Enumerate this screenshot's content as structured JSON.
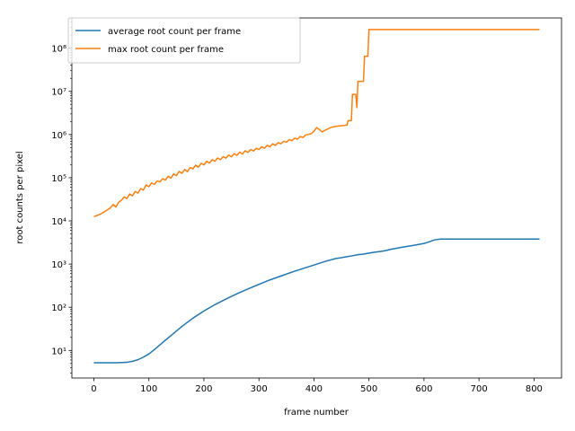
{
  "chart_data": {
    "type": "line",
    "title": "",
    "xlabel": "frame number",
    "ylabel": "root counts per pixel",
    "xlim": [
      -40,
      850
    ],
    "ylim": [
      2.3,
      500000000
    ],
    "yscale": "log",
    "grid": false,
    "legend_position": "top-left",
    "x_ticks": [
      0,
      100,
      200,
      300,
      400,
      500,
      600,
      700,
      800
    ],
    "y_ticks": [
      {
        "value": 10,
        "label": "10¹"
      },
      {
        "value": 100,
        "label": "10²"
      },
      {
        "value": 1000,
        "label": "10³"
      },
      {
        "value": 10000,
        "label": "10⁴"
      },
      {
        "value": 100000,
        "label": "10⁵"
      },
      {
        "value": 1000000,
        "label": "10⁶"
      },
      {
        "value": 10000000,
        "label": "10⁷"
      },
      {
        "value": 100000000,
        "label": "10⁸"
      }
    ],
    "series": [
      {
        "name": "average root count per frame",
        "color": "#1f77b4",
        "x": [
          0,
          20,
          40,
          60,
          70,
          80,
          90,
          100,
          110,
          120,
          140,
          160,
          180,
          200,
          220,
          240,
          260,
          280,
          300,
          320,
          340,
          360,
          380,
          400,
          420,
          440,
          460,
          470,
          480,
          490,
          500,
          510,
          520,
          530,
          540,
          560,
          580,
          600,
          610,
          620,
          630,
          650,
          700,
          750,
          810
        ],
        "y": [
          5.2,
          5.2,
          5.2,
          5.3,
          5.6,
          6.1,
          7,
          8.3,
          10.5,
          13.5,
          22,
          36,
          56,
          82,
          115,
          155,
          205,
          265,
          340,
          430,
          530,
          650,
          790,
          950,
          1150,
          1350,
          1480,
          1560,
          1650,
          1700,
          1800,
          1880,
          1950,
          2050,
          2200,
          2450,
          2700,
          3000,
          3300,
          3650,
          3800,
          3800,
          3800,
          3800,
          3800
        ]
      },
      {
        "name": "max root count per frame",
        "color": "#ff7f0e",
        "x": [
          0,
          10,
          20,
          30,
          35,
          40,
          45,
          50,
          55,
          60,
          65,
          70,
          75,
          80,
          85,
          90,
          95,
          100,
          105,
          110,
          115,
          120,
          125,
          130,
          135,
          140,
          145,
          150,
          155,
          160,
          165,
          170,
          175,
          180,
          185,
          190,
          195,
          200,
          205,
          210,
          215,
          220,
          225,
          230,
          235,
          240,
          245,
          250,
          255,
          260,
          265,
          270,
          275,
          280,
          285,
          290,
          295,
          300,
          305,
          310,
          315,
          320,
          325,
          330,
          335,
          340,
          345,
          350,
          355,
          360,
          365,
          370,
          375,
          380,
          385,
          390,
          395,
          400,
          405,
          410,
          415,
          420,
          430,
          440,
          450,
          460,
          462,
          468,
          470,
          476,
          478,
          480,
          482,
          490,
          492,
          498,
          500,
          502,
          550,
          600,
          650,
          700,
          750,
          810
        ],
        "y": [
          12500,
          14000,
          16500,
          20000,
          24000,
          21000,
          27000,
          30000,
          36000,
          33000,
          42000,
          38000,
          48000,
          44000,
          56000,
          52000,
          68000,
          62000,
          76000,
          70000,
          84000,
          80000,
          95000,
          88000,
          108000,
          98000,
          122000,
          112000,
          140000,
          126000,
          155000,
          138000,
          172000,
          160000,
          195000,
          175000,
          215000,
          198000,
          240000,
          218000,
          262000,
          240000,
          285000,
          262000,
          308000,
          284000,
          335000,
          305000,
          360000,
          330000,
          390000,
          355000,
          420000,
          385000,
          450000,
          415000,
          480000,
          450000,
          520000,
          480000,
          560000,
          520000,
          610000,
          560000,
          650000,
          610000,
          700000,
          660000,
          760000,
          720000,
          820000,
          780000,
          900000,
          850000,
          980000,
          1000000,
          1050000,
          1200000,
          1450000,
          1300000,
          1150000,
          1250000,
          1450000,
          1550000,
          1600000,
          1650000,
          2100000,
          2100000,
          8500000,
          8500000,
          4200000,
          17000000,
          17000000,
          17000000,
          65000000,
          65000000,
          270000000,
          270000000,
          270000000,
          270000000,
          270000000,
          270000000,
          270000000,
          270000000
        ]
      }
    ]
  }
}
